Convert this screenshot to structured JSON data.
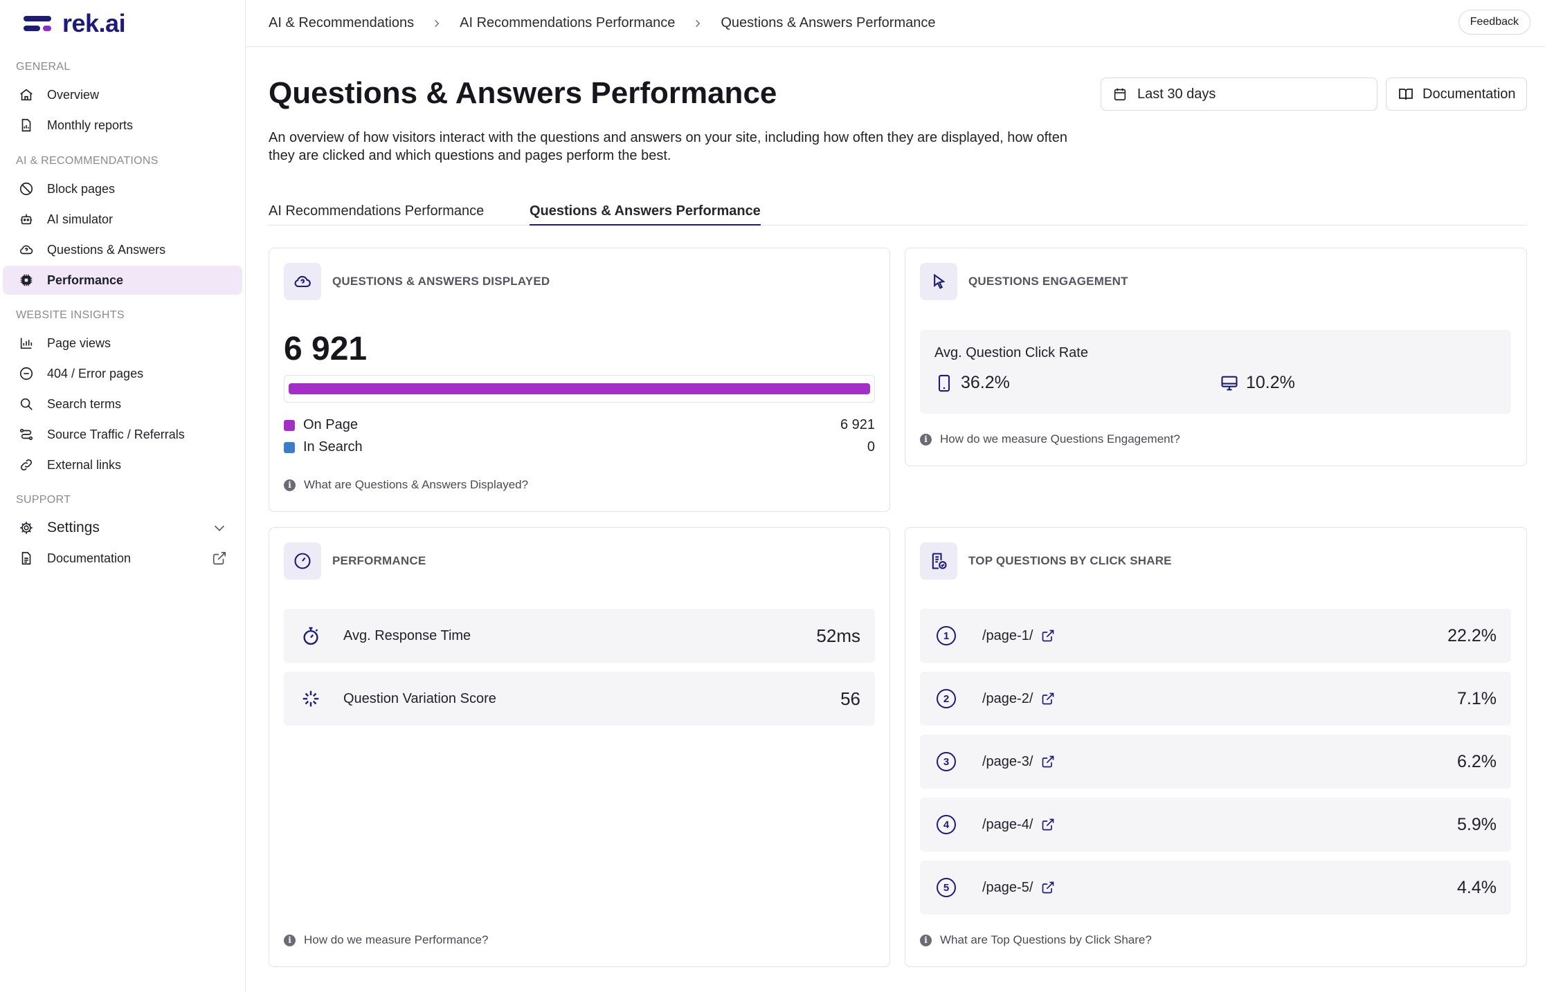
{
  "brand": {
    "name": "rek.ai"
  },
  "sidebar": {
    "sections": [
      {
        "title": "GENERAL"
      },
      {
        "title": "AI & RECOMMENDATIONS"
      },
      {
        "title": "WEBSITE INSIGHTS"
      },
      {
        "title": "SUPPORT"
      }
    ],
    "items": [
      {
        "label": "Overview",
        "icon": "home-icon"
      },
      {
        "label": "Monthly reports",
        "icon": "report-icon"
      },
      {
        "label": "Block pages",
        "icon": "block-icon"
      },
      {
        "label": "AI simulator",
        "icon": "robot-icon"
      },
      {
        "label": "Questions & Answers",
        "icon": "cloud-question-icon"
      },
      {
        "label": "Performance",
        "icon": "chip-icon",
        "active": true
      },
      {
        "label": "Page views",
        "icon": "bar-chart-icon"
      },
      {
        "label": "404 / Error pages",
        "icon": "minus-circle-icon"
      },
      {
        "label": "Search terms",
        "icon": "search-icon"
      },
      {
        "label": "Source Traffic / Referrals",
        "icon": "route-icon"
      },
      {
        "label": "External links",
        "icon": "link-icon"
      },
      {
        "label": "Settings",
        "icon": "gear-icon"
      },
      {
        "label": "Documentation",
        "icon": "document-icon"
      }
    ]
  },
  "topbar": {
    "breadcrumbs": [
      "AI & Recommendations",
      "AI Recommendations Performance",
      "Questions & Answers Performance"
    ],
    "feedback_label": "Feedback"
  },
  "page": {
    "title": "Questions & Answers Performance",
    "description": "An overview of how visitors interact with the questions and answers on your site, including how often they are displayed, how often they are clicked and which questions and pages perform the best.",
    "date_range": "Last 30 days",
    "documentation_label": "Documentation"
  },
  "tabs": [
    {
      "label": "AI Recommendations Performance",
      "active": false
    },
    {
      "label": "Questions & Answers Performance",
      "active": true
    }
  ],
  "displayed": {
    "title": "QUESTIONS & ANSWERS DISPLAYED",
    "total": "6 921",
    "on_page_fraction": 1.0,
    "legend": [
      {
        "label": "On Page",
        "value": "6 921",
        "color": "#a42fc8"
      },
      {
        "label": "In Search",
        "value": "0",
        "color": "#3a7ec9"
      }
    ],
    "help": "What are Questions & Answers Displayed?"
  },
  "engagement": {
    "title": "QUESTIONS ENGAGEMENT",
    "label": "Avg. Question Click Rate",
    "mobile": "36.2%",
    "desktop": "10.2%",
    "help": "How do we measure Questions Engagement?"
  },
  "performance": {
    "title": "PERFORMANCE",
    "rows": [
      {
        "label": "Avg. Response Time",
        "value": "52ms"
      },
      {
        "label": "Question Variation Score",
        "value": "56"
      }
    ],
    "help": "How do we measure Performance?"
  },
  "top_questions": {
    "title": "TOP QUESTIONS BY CLICK SHARE",
    "rows": [
      {
        "rank": "1",
        "page": "/page-1/",
        "value": "22.2%"
      },
      {
        "rank": "2",
        "page": "/page-2/",
        "value": "7.1%"
      },
      {
        "rank": "3",
        "page": "/page-3/",
        "value": "6.2%"
      },
      {
        "rank": "4",
        "page": "/page-4/",
        "value": "5.9%"
      },
      {
        "rank": "5",
        "page": "/page-5/",
        "value": "4.4%"
      }
    ],
    "help": "What are Top Questions by Click Share?"
  },
  "colors": {
    "brand": "#1d1a7a",
    "accent": "#a42fc8",
    "active_bg": "#f2e7f7"
  }
}
